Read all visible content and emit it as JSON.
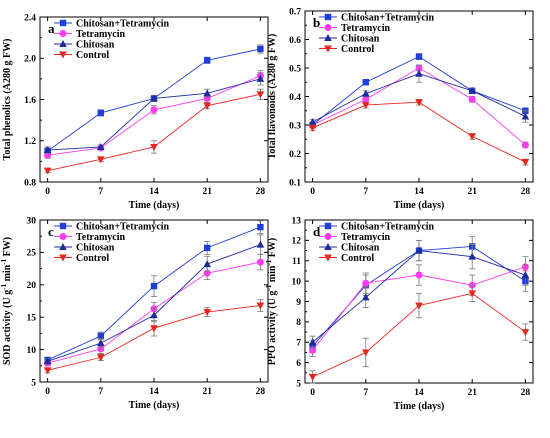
{
  "colors": {
    "Chitosan+Tetramycin": "#1f3fd6",
    "Tetramycin": "#ff3cf0",
    "Chitosan": "#1f2a9e",
    "Control": "#e8261f"
  },
  "chart_data": [
    {
      "id": "a",
      "type": "line",
      "panel_letter": "a",
      "xlabel": "Time (days)",
      "ylabel": "Total phenolics (A280 g FW)",
      "x": [
        0,
        7,
        14,
        21,
        28
      ],
      "xticks": [
        "0",
        "7",
        "14",
        "21",
        "28"
      ],
      "ylim": [
        0.8,
        2.4
      ],
      "yticks": [
        0.8,
        1.2,
        1.6,
        2.0,
        2.4
      ],
      "ytick_labels": [
        "0.8",
        "1.2",
        "1.6",
        "2.0",
        "2.4"
      ],
      "legend": "top-left",
      "series": [
        {
          "name": "Chitosan+Tetramycin",
          "marker": "square",
          "values": [
            1.1,
            1.47,
            1.61,
            1.98,
            2.09
          ],
          "errors": [
            0.04,
            0.03,
            0.03,
            0.03,
            0.04
          ]
        },
        {
          "name": "Tetramycin",
          "marker": "circle",
          "values": [
            1.06,
            1.13,
            1.5,
            1.61,
            1.83
          ],
          "errors": [
            0.03,
            0.02,
            0.04,
            0.04,
            0.05
          ]
        },
        {
          "name": "Chitosan",
          "marker": "triangle-up",
          "values": [
            1.11,
            1.14,
            1.61,
            1.66,
            1.8
          ],
          "errors": [
            0.03,
            0.02,
            0.03,
            0.04,
            0.06
          ]
        },
        {
          "name": "Control",
          "marker": "triangle-down",
          "values": [
            0.91,
            1.02,
            1.14,
            1.54,
            1.65
          ],
          "errors": [
            0.02,
            0.02,
            0.06,
            0.03,
            0.05
          ]
        }
      ]
    },
    {
      "id": "b",
      "type": "line",
      "panel_letter": "b",
      "xlabel": "Time (days)",
      "ylabel": "Total flavonoids (A280 g FW)",
      "x": [
        0,
        7,
        14,
        21,
        28
      ],
      "xticks": [
        "0",
        "7",
        "14",
        "21",
        "28"
      ],
      "ylim": [
        0.1,
        0.7
      ],
      "yticks": [
        0.1,
        0.2,
        0.3,
        0.4,
        0.5,
        0.6,
        0.7
      ],
      "ytick_labels": [
        "0.1",
        "0.2",
        "0.3",
        "0.4",
        "0.5",
        "0.6",
        "0.7"
      ],
      "legend": "top-left",
      "series": [
        {
          "name": "Chitosan+Tetramycin",
          "marker": "square",
          "values": [
            0.3,
            0.45,
            0.54,
            0.42,
            0.35
          ],
          "errors": [
            0.01,
            0.01,
            0.01,
            0.01,
            0.01
          ]
        },
        {
          "name": "Tetramycin",
          "marker": "circle",
          "values": [
            0.3,
            0.39,
            0.5,
            0.39,
            0.23
          ],
          "errors": [
            0.01,
            0.01,
            0.01,
            0.01,
            0.01
          ]
        },
        {
          "name": "Chitosan",
          "marker": "triangle-up",
          "values": [
            0.31,
            0.41,
            0.48,
            0.42,
            0.33
          ],
          "errors": [
            0.01,
            0.01,
            0.03,
            0.01,
            0.02
          ]
        },
        {
          "name": "Control",
          "marker": "triangle-down",
          "values": [
            0.29,
            0.37,
            0.38,
            0.26,
            0.17
          ],
          "errors": [
            0.01,
            0.01,
            0.01,
            0.01,
            0.01
          ]
        }
      ]
    },
    {
      "id": "c",
      "type": "line",
      "panel_letter": "c",
      "xlabel": "Time (days)",
      "ylabel_parts": [
        "SOD activity (U g",
        "-1",
        " min",
        "-1",
        " FW)"
      ],
      "x": [
        0,
        7,
        14,
        21,
        28
      ],
      "xticks": [
        "0",
        "7",
        "14",
        "21",
        "28"
      ],
      "ylim": [
        5,
        30
      ],
      "yticks": [
        5,
        10,
        15,
        20,
        25,
        30
      ],
      "ytick_labels": [
        "5",
        "10",
        "15",
        "20",
        "25",
        "30"
      ],
      "legend": "top-left",
      "series": [
        {
          "name": "Chitosan+Tetramycin",
          "marker": "square",
          "values": [
            8.4,
            12.1,
            19.8,
            25.7,
            28.9
          ],
          "errors": [
            0.4,
            0.6,
            1.6,
            1.0,
            1.0
          ]
        },
        {
          "name": "Tetramycin",
          "marker": "circle",
          "values": [
            7.9,
            10.1,
            16.3,
            21.8,
            23.5
          ],
          "errors": [
            0.4,
            0.7,
            1.0,
            1.0,
            1.2
          ]
        },
        {
          "name": "Chitosan",
          "marker": "triangle-up",
          "values": [
            8.2,
            11.0,
            15.3,
            23.2,
            26.2
          ],
          "errors": [
            0.4,
            0.7,
            1.0,
            1.2,
            1.5
          ]
        },
        {
          "name": "Control",
          "marker": "triangle-down",
          "values": [
            6.8,
            8.8,
            13.3,
            15.8,
            16.8
          ],
          "errors": [
            0.4,
            0.5,
            1.2,
            0.7,
            0.9
          ]
        }
      ]
    },
    {
      "id": "d",
      "type": "line",
      "panel_letter": "d",
      "xlabel": "Time (days)",
      "ylabel_parts": [
        "PPO activity (U g",
        "-1",
        " min",
        "-1",
        " FW)"
      ],
      "x": [
        0,
        7,
        14,
        21,
        28
      ],
      "xticks": [
        "0",
        "7",
        "14",
        "21",
        "28"
      ],
      "ylim": [
        5,
        13
      ],
      "yticks": [
        5,
        6,
        7,
        8,
        9,
        10,
        11,
        12,
        13
      ],
      "ytick_labels": [
        "5",
        "6",
        "7",
        "8",
        "9",
        "10",
        "11",
        "12",
        "13"
      ],
      "legend": "top-left",
      "series": [
        {
          "name": "Chitosan+Tetramycin",
          "marker": "square",
          "values": [
            6.8,
            9.8,
            11.5,
            11.7,
            10.0
          ],
          "errors": [
            0.3,
            0.5,
            0.5,
            0.5,
            0.5
          ]
        },
        {
          "name": "Tetramycin",
          "marker": "circle",
          "values": [
            6.6,
            9.9,
            10.3,
            9.8,
            10.7
          ],
          "errors": [
            0.3,
            0.5,
            0.5,
            0.5,
            0.5
          ]
        },
        {
          "name": "Chitosan",
          "marker": "triangle-up",
          "values": [
            7.0,
            9.2,
            11.5,
            11.2,
            10.3
          ],
          "errors": [
            0.3,
            0.5,
            0.5,
            0.6,
            0.5
          ]
        },
        {
          "name": "Control",
          "marker": "triangle-down",
          "values": [
            5.3,
            6.5,
            8.8,
            9.4,
            7.5
          ],
          "errors": [
            0.3,
            0.7,
            0.6,
            0.4,
            0.4
          ]
        }
      ]
    }
  ]
}
